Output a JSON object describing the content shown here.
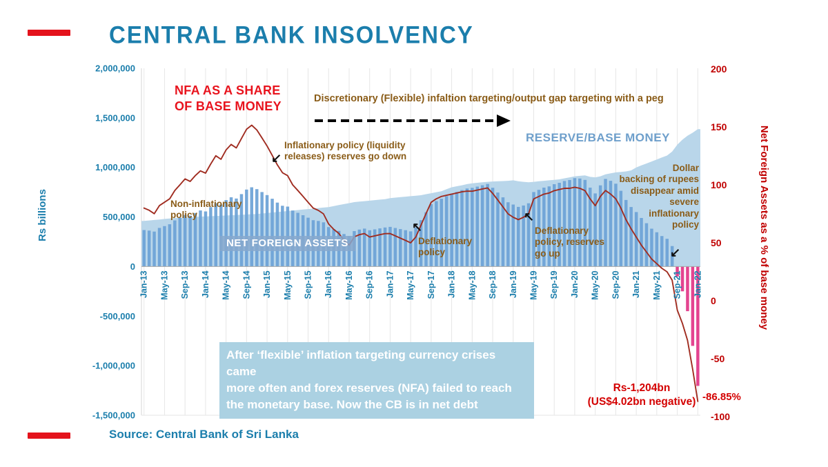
{
  "page": {
    "title": "CENTRAL BANK INSOLVENCY",
    "source": "Source: Central Bank of Sri Lanka"
  },
  "annotations": {
    "nfa_share": "NFA AS A SHARE\nOF BASE MONEY",
    "discretionary": "Discretionary (Flexible) infaltion targeting/output gap targeting with a peg",
    "inflationary": "Inflationary policy (liquidity\nreleases) reserves go down",
    "reserve_base_money": "RESERVE/BASE MONEY",
    "non_inflationary": "Non-inflationary\npolicy",
    "net_foreign_assets": "NET FOREIGN ASSETS",
    "deflationary_1": "Deflationary\npolicy",
    "deflationary_2": "Deflationary\npolicy, reserves\ngo up",
    "dollar_backing": "Dollar\nbacking of rupees\ndisappear amid\nsevere\ninflationary\npolicy",
    "caption": "After ‘flexible’ inflation targeting currency crises came\nmore often and forex reserves (NFA) failed to reach\nthe monetary base. Now the CB is in net debt",
    "final_rs": "Rs-1,204bn\n(US$4.02bn negative)",
    "final_pct": "-86.85%"
  },
  "icons": {
    "arrow_down_left": "↙",
    "arrow_up_left": "↖"
  },
  "colors": {
    "teal": "#1b7eac",
    "axis_red": "#c00000",
    "bright_red": "#e8131d",
    "brown": "#8a5c18",
    "bar_blue": "#6ba2d6",
    "bar_negative_pink": "#e23487",
    "area_blue": "#b9d6ea",
    "line_dark_red": "#a02c20",
    "caption_box_blue": "#abd1e2",
    "accent_red": "#e4131c"
  },
  "chart_data": {
    "type": "combo",
    "title": "CENTRAL BANK INSOLVENCY",
    "x": {
      "start": "Jan-13",
      "end": "Jan-22",
      "interval": "monthly",
      "tick_every": 4,
      "tick_labels": [
        "Jan-13",
        "May-13",
        "Sep-13",
        "Jan-14",
        "May-14",
        "Sep-14",
        "Jan-15",
        "May-15",
        "Sep-15",
        "Jan-16",
        "May-16",
        "Sep-16",
        "Jan-17",
        "May-17",
        "Sep-17",
        "Jan-18",
        "May-18",
        "Sep-18",
        "Jan-19",
        "May-19",
        "Sep-19",
        "Jan-20",
        "May-20",
        "Sep-20",
        "Jan-21",
        "May-21",
        "Sep-21",
        "Jan-22"
      ]
    },
    "left_axis": {
      "label": "Rs billions",
      "min": -1500000,
      "max": 2000000,
      "tick_labels": [
        "2,000,000",
        "1,500,000",
        "1,000,000",
        "500,000",
        "0",
        "-500,000",
        "-1,000,000",
        "-1,500,000"
      ]
    },
    "right_axis": {
      "label": "Net Foreign Assets as a % of base money",
      "min": -100,
      "max": 200,
      "tick_labels": [
        "200",
        "150",
        "100",
        "50",
        "0",
        "-50",
        "-100"
      ]
    },
    "grid": "vertical-only",
    "legend": "inline-annotations",
    "series": [
      {
        "name": "RESERVE/BASE MONEY",
        "type": "area",
        "axis": "left",
        "color": "#b9d6ea",
        "values": [
          460000,
          465000,
          470000,
          475000,
          480000,
          485000,
          490000,
          492000,
          495000,
          498000,
          500000,
          505000,
          505000,
          508000,
          510000,
          512000,
          515000,
          518000,
          520000,
          522000,
          525000,
          528000,
          530000,
          535000,
          540000,
          545000,
          550000,
          555000,
          560000,
          565000,
          570000,
          575000,
          580000,
          585000,
          590000,
          595000,
          600000,
          610000,
          620000,
          630000,
          640000,
          650000,
          655000,
          660000,
          665000,
          670000,
          675000,
          680000,
          690000,
          695000,
          700000,
          705000,
          710000,
          715000,
          720000,
          730000,
          740000,
          750000,
          760000,
          780000,
          800000,
          810000,
          820000,
          832000,
          840000,
          845000,
          850000,
          855000,
          858000,
          860000,
          862000,
          865000,
          870000,
          860000,
          855000,
          850000,
          855000,
          860000,
          865000,
          870000,
          875000,
          880000,
          890000,
          900000,
          910000,
          915000,
          920000,
          905000,
          900000,
          910000,
          930000,
          940000,
          950000,
          955000,
          960000,
          970000,
          1000000,
          1020000,
          1040000,
          1060000,
          1080000,
          1100000,
          1120000,
          1160000,
          1230000,
          1280000,
          1320000,
          1350000,
          1386000
        ]
      },
      {
        "name": "NET FOREIGN ASSETS",
        "type": "bar",
        "axis": "left",
        "color": "#6ba2d6",
        "negative_color": "#e23487",
        "values": [
          368000,
          363000,
          353000,
          390000,
          408000,
          427000,
          466000,
          492000,
          520000,
          513000,
          540000,
          566000,
          556000,
          599000,
          638000,
          625000,
          670000,
          699000,
          686000,
          731000,
          777000,
          800000,
          781000,
          752000,
          721000,
          684000,
          645000,
          613000,
          605000,
          565000,
          542000,
          518000,
          493000,
          468000,
          460000,
          446000,
          398000,
          376000,
          360000,
          328000,
          307000,
          358000,
          373000,
          383000,
          366000,
          375000,
          385000,
          394000,
          400000,
          389000,
          378000,
          367000,
          355000,
          393000,
          468000,
          548000,
          629000,
          660000,
          684000,
          710000,
          736000,
          753000,
          771000,
          787000,
          794000,
          807000,
          820000,
          833000,
          795000,
          747000,
          698000,
          649000,
          626000,
          602000,
          616000,
          638000,
          752000,
          774000,
          796000,
          809000,
          831000,
          845000,
          863000,
          873000,
          892000,
          888000,
          874000,
          796000,
          738000,
          819000,
          884000,
          865000,
          836000,
          764000,
          672000,
          601000,
          550000,
          490000,
          437000,
          382000,
          346000,
          308000,
          280000,
          207000,
          -100000,
          -250000,
          -450000,
          -800000,
          -1204000
        ]
      },
      {
        "name": "NFA AS A SHARE OF BASE MONEY (%)",
        "type": "line",
        "axis": "right",
        "color": "#a02c20",
        "values": [
          80,
          78.1,
          75.1,
          82.1,
          85,
          88,
          95.1,
          100,
          105.1,
          103,
          108,
          112.1,
          110.1,
          117.9,
          125.1,
          122.1,
          130.1,
          134.9,
          131.9,
          140,
          148,
          151.5,
          147.4,
          140.6,
          133.5,
          125.5,
          117.3,
          110.5,
          108,
          100,
          95.1,
          90.1,
          85,
          80,
          78,
          75,
          66.3,
          61.6,
          58.1,
          52.1,
          48,
          55.1,
          57,
          58,
          55,
          56,
          57,
          57.9,
          58,
          56,
          54,
          52.1,
          50,
          55,
          65,
          75.1,
          85,
          88,
          90,
          91,
          92,
          93,
          94,
          94.6,
          94.5,
          95.5,
          96.5,
          97.4,
          92.7,
          86.9,
          81,
          75,
          72,
          70,
          72,
          75.1,
          87.9,
          90,
          92,
          93,
          95,
          96,
          97,
          97,
          98,
          97,
          95,
          88,
          82,
          90,
          95.1,
          92,
          88,
          80,
          70,
          62,
          55,
          48,
          42,
          36,
          32,
          28,
          25,
          17.8,
          -8.1,
          -19.5,
          -34.1,
          -59.3,
          -86.85
        ]
      }
    ],
    "callout_values": {
      "final_nfa_rs_bn": -1204,
      "final_nfa_usd_bn": -4.02,
      "final_share_pct": -86.85
    }
  }
}
